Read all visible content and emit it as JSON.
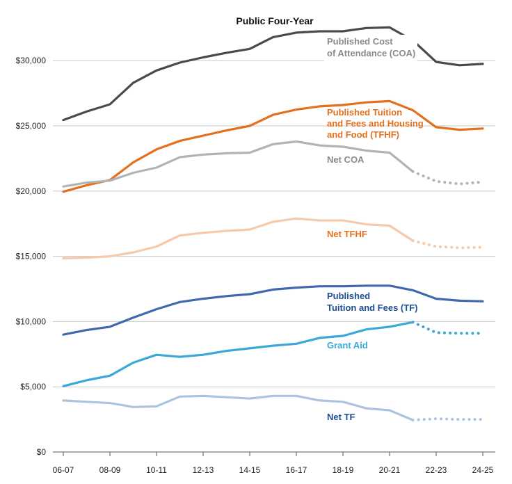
{
  "chart_data": {
    "type": "line",
    "title": "Public Four-Year",
    "xlabel": "",
    "ylabel": "",
    "x_tick_labels": [
      "06-07",
      "08-09",
      "10-11",
      "12-13",
      "14-15",
      "16-17",
      "18-19",
      "20-21",
      "22-23",
      "24-25"
    ],
    "y_tick_labels": [
      "$0",
      "$5,000",
      "$10,000",
      "$15,000",
      "$20,000",
      "$25,000",
      "$30,000"
    ],
    "ylim": [
      0,
      33000
    ],
    "grid": "horizontal",
    "categories": [
      "06-07",
      "07-08",
      "08-09",
      "09-10",
      "10-11",
      "11-12",
      "12-13",
      "13-14",
      "14-15",
      "15-16",
      "16-17",
      "17-18",
      "18-19",
      "19-20",
      "20-21",
      "21-22",
      "22-23",
      "23-24",
      "24-25"
    ],
    "series": [
      {
        "name": "Published Cost of Attendance (COA)",
        "label_lines": [
          "Published Cost",
          "of Attendance (COA)"
        ],
        "color": "#4a4a4a",
        "label_color": "#8a8a8a",
        "solid_until": 18,
        "projected_from": null,
        "values": [
          25450,
          26100,
          26650,
          28300,
          29250,
          29850,
          30250,
          30600,
          30900,
          31800,
          32150,
          32250,
          32250,
          32500,
          32550,
          31550,
          29900,
          29650,
          29750
        ]
      },
      {
        "name": "Published Tuition and Fees and Housing and Food (TFHF)",
        "label_lines": [
          "Published Tuition",
          "and Fees and Housing",
          "and Food (TFHF)"
        ],
        "color": "#e4701e",
        "label_color": "#e4701e",
        "solid_until": 18,
        "projected_from": null,
        "values": [
          19950,
          20450,
          20850,
          22200,
          23200,
          23850,
          24250,
          24650,
          25000,
          25850,
          26250,
          26500,
          26600,
          26800,
          26900,
          26200,
          24900,
          24700,
          24800
        ]
      },
      {
        "name": "Net COA",
        "label_lines": [
          "Net COA"
        ],
        "color": "#b3b3b3",
        "label_color": "#8a8a8a",
        "solid_until": 15,
        "projected_from": 15,
        "values": [
          20350,
          20650,
          20800,
          21400,
          21800,
          22600,
          22800,
          22900,
          22950,
          23600,
          23800,
          23500,
          23400,
          23100,
          22950,
          21500,
          20750,
          20550,
          20700
        ]
      },
      {
        "name": "Net TFHF",
        "label_lines": [
          "Net TFHF"
        ],
        "color": "#f6c9a8",
        "label_color": "#e4701e",
        "solid_until": 15,
        "projected_from": 15,
        "values": [
          14850,
          14900,
          15000,
          15300,
          15750,
          16600,
          16800,
          16950,
          17050,
          17650,
          17900,
          17750,
          17750,
          17450,
          17350,
          16200,
          15750,
          15650,
          15700
        ]
      },
      {
        "name": "Published Tuition and Fees (TF)",
        "label_lines": [
          "Published",
          "Tuition and Fees (TF)"
        ],
        "color": "#3f68ae",
        "label_color": "#1f4f94",
        "solid_until": 18,
        "projected_from": null,
        "values": [
          9000,
          9350,
          9600,
          10300,
          10950,
          11500,
          11750,
          11950,
          12100,
          12450,
          12600,
          12700,
          12700,
          12750,
          12750,
          12400,
          11750,
          11600,
          11550
        ]
      },
      {
        "name": "Grant Aid",
        "label_lines": [
          "Grant Aid"
        ],
        "color": "#3aa8d8",
        "label_color": "#3aa8d8",
        "solid_until": 15,
        "projected_from": 15,
        "values": [
          5050,
          5500,
          5850,
          6850,
          7450,
          7300,
          7450,
          7750,
          7950,
          8150,
          8300,
          8750,
          8900,
          9400,
          9600,
          9950,
          9150,
          9100,
          9100
        ]
      },
      {
        "name": "Net TF",
        "label_lines": [
          "Net TF"
        ],
        "color": "#aac4e0",
        "label_color": "#1f4f94",
        "solid_until": 15,
        "projected_from": 15,
        "values": [
          3950,
          3850,
          3750,
          3450,
          3500,
          4250,
          4300,
          4200,
          4100,
          4300,
          4300,
          3950,
          3850,
          3350,
          3200,
          2450,
          2550,
          2500,
          2500
        ]
      }
    ]
  }
}
